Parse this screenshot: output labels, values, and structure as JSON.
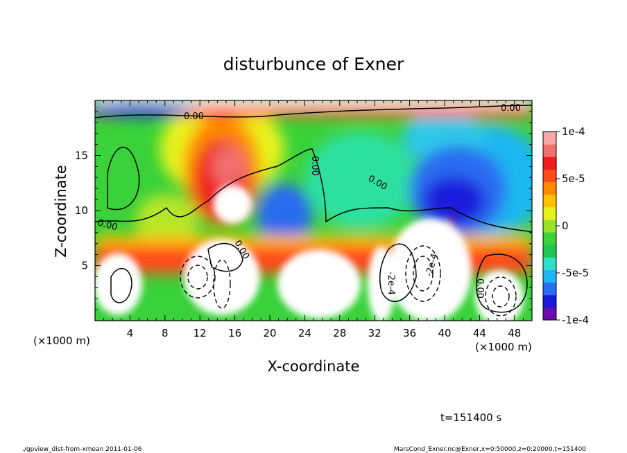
{
  "chart_data": {
    "type": "heatmap",
    "title": "disturbunce of Exner",
    "xlabel": "X-coordinate",
    "ylabel": "Z-coordinate",
    "x_unit": "(×1000 m)",
    "y_unit": "(×1000 m)",
    "xlim": [
      0,
      50
    ],
    "ylim": [
      0,
      20
    ],
    "x_ticks": [
      "4",
      "8",
      "12",
      "16",
      "20",
      "24",
      "28",
      "32",
      "36",
      "40",
      "44",
      "48"
    ],
    "y_ticks": [
      "5",
      "10",
      "15"
    ],
    "colorbar": {
      "min": -0.0001,
      "max": 0.0001,
      "tick_labels": [
        "1e-4",
        "5e-5",
        "0",
        "-5e-5",
        "-1e-4"
      ],
      "colors": [
        "#6a0dad",
        "#1a1adb",
        "#2a6cf0",
        "#1fb7f0",
        "#2ee0c8",
        "#1ec850",
        "#3ad13a",
        "#9be02a",
        "#e8f21a",
        "#ffc200",
        "#ff8a00",
        "#ff4a1a",
        "#ee1c1c",
        "#f07070",
        "#f7a8a8"
      ]
    },
    "contour_labels": [
      "0.00",
      "0.00",
      "0.00",
      "0.00",
      "0.00",
      "0.00",
      "-2e-4",
      "-2e-4",
      "0.00"
    ],
    "features": [
      {
        "x": 14.5,
        "z": 13.5,
        "value": 8e-05
      },
      {
        "x": 16.0,
        "z": 16.5,
        "value": 6e-05
      },
      {
        "x": 22.0,
        "z": 9.0,
        "value": -8e-05
      },
      {
        "x": 40.0,
        "z": 11.0,
        "value": -9e-05
      },
      {
        "x": 38.5,
        "z": 14.0,
        "value": -6e-05
      },
      {
        "x": 40.5,
        "z": 16.0,
        "value": -3e-05
      }
    ],
    "annotation": "t=151400 s"
  },
  "footer": {
    "left": "./gpview_dist-from-xmean  2011-01-06",
    "right": "MarsCond_Exner.nc@Exner,x=0:50000,z=0:20000,t=151400"
  }
}
